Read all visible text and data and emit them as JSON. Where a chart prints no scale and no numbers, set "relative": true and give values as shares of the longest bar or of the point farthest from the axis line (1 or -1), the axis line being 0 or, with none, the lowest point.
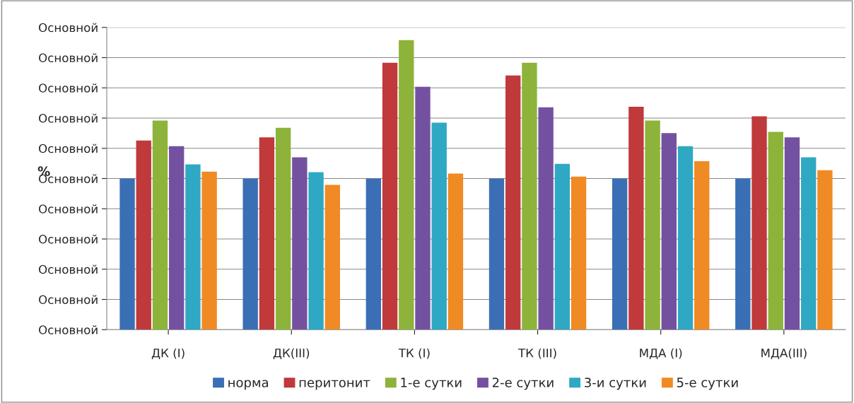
{
  "chart_data": {
    "type": "bar",
    "relative": true,
    "ylabel": "%",
    "categories": [
      "ДК (I)",
      "ДК(III)",
      "ТК (I)",
      "ТК (III)",
      "МДА (I)",
      "МДА(III)"
    ],
    "series": [
      {
        "name": "норма",
        "color": "#3a6fb5",
        "values": [
          0.522,
          0.522,
          0.522,
          0.522,
          0.522,
          0.522
        ]
      },
      {
        "name": "перитонит",
        "color": "#c0393b",
        "values": [
          0.653,
          0.664,
          0.922,
          0.878,
          0.77,
          0.737
        ]
      },
      {
        "name": "1-е сутки",
        "color": "#8db33a",
        "values": [
          0.722,
          0.697,
          1,
          0.922,
          0.722,
          0.683
        ]
      },
      {
        "name": "2-е сутки",
        "color": "#7451a0",
        "values": [
          0.634,
          0.595,
          0.839,
          0.768,
          0.679,
          0.664
        ]
      },
      {
        "name": "3-и сутки",
        "color": "#2fa8c4",
        "values": [
          0.571,
          0.544,
          0.715,
          0.573,
          0.634,
          0.595
        ]
      },
      {
        "name": "5-е сутки",
        "color": "#f08a24",
        "values": [
          0.546,
          0.5,
          0.539,
          0.529,
          0.582,
          0.551
        ]
      }
    ],
    "annotations": [
      "Основной",
      "Основной",
      "Основной",
      "Основной",
      "Основной",
      "Основной",
      "Основной",
      "Основной",
      "Основной",
      "Основной",
      "Основной"
    ],
    "grid": "y",
    "legend": "bottom"
  }
}
